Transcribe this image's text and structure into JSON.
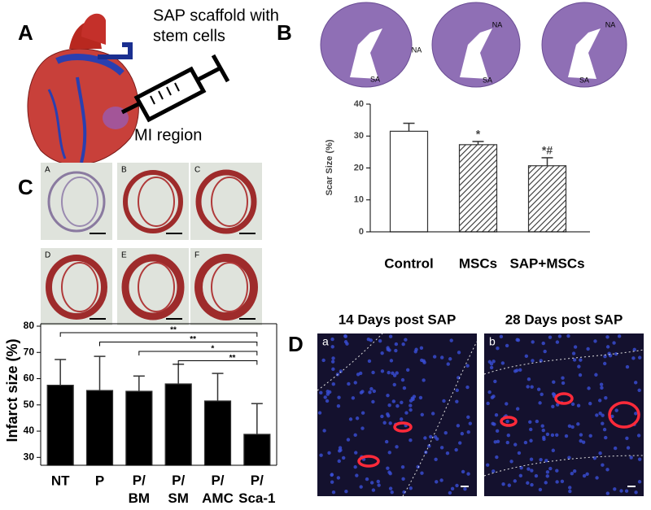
{
  "panels": {
    "a": {
      "letter": "A",
      "caption": [
        "SAP scaffold with",
        "stem cells"
      ],
      "region": "MI region"
    },
    "b": {
      "letter": "B",
      "sections": [
        {
          "top": "NA",
          "bottom": "SA"
        },
        {
          "top": "NA",
          "bottom": "SA"
        },
        {
          "top": "NA",
          "bottom": "SA"
        }
      ]
    },
    "c": {
      "letter": "C",
      "micrographs": [
        "A",
        "B",
        "C",
        "D",
        "E",
        "F"
      ]
    },
    "d": {
      "letter": "D",
      "images": [
        {
          "title": "14 Days post SAP",
          "tag": "a"
        },
        {
          "title": "28 Days post SAP",
          "tag": "b"
        }
      ]
    }
  },
  "chart_data": [
    {
      "type": "bar",
      "ylabel": "Scar Size (%)",
      "categories": [
        "Control",
        "MSCs",
        "SAP+MSCs"
      ],
      "values": [
        31.5,
        27.3,
        20.7
      ],
      "errors": [
        2.5,
        1,
        2.5
      ],
      "fills": [
        "plain",
        "hatch",
        "hatch"
      ],
      "annotations": [
        {
          "index": 1,
          "text": "*"
        },
        {
          "index": 2,
          "text": "*#"
        }
      ],
      "ylim": [
        0,
        40
      ],
      "yticks": [
        0,
        10,
        20,
        30,
        40
      ]
    },
    {
      "type": "bar",
      "ylabel": "Infarct size (%)",
      "categories": [
        "NT",
        "P",
        "P/\nBM",
        "P/\nSM",
        "P/\nAMC",
        "P/\nSca-1"
      ],
      "values": [
        57.5,
        55.5,
        55.2,
        58,
        51.5,
        38.8
      ],
      "errors": [
        9.8,
        13,
        5.8,
        7.5,
        10.5,
        11.7
      ],
      "color": "#000000",
      "brackets": [
        {
          "from": 0,
          "to": 5,
          "text": "**"
        },
        {
          "from": 1,
          "to": 5,
          "text": "**"
        },
        {
          "from": 2,
          "to": 5,
          "text": "*"
        },
        {
          "from": 3,
          "to": 5,
          "text": "**"
        }
      ],
      "ylim": [
        27,
        80
      ],
      "yticks": [
        30,
        40,
        50,
        60,
        70,
        80
      ]
    }
  ]
}
